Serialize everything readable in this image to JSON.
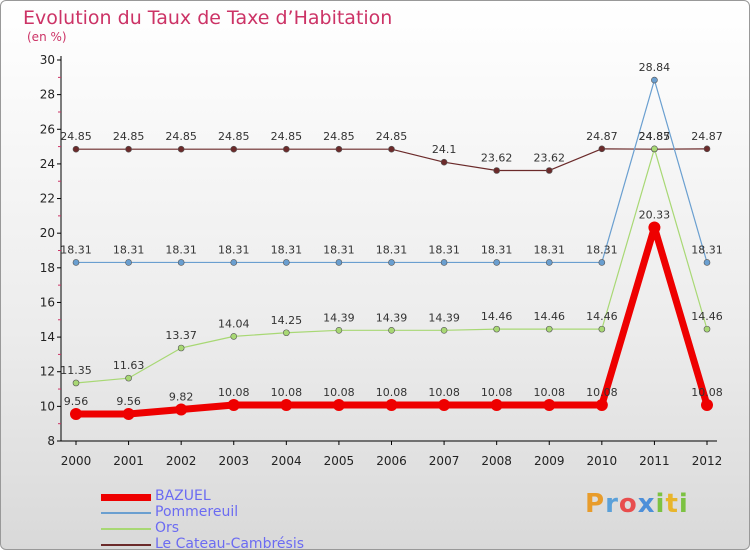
{
  "title": "Evolution du Taux de Taxe d’Habitation",
  "subtitle": "(en %)",
  "logo_text": "Proxiti",
  "chart_data": {
    "type": "line",
    "title": "Evolution du Taux de Taxe d’Habitation",
    "ylabel": "(en %)",
    "xlabel": "",
    "x": [
      "2000",
      "2001",
      "2002",
      "2003",
      "2004",
      "2005",
      "2006",
      "2007",
      "2008",
      "2009",
      "2010",
      "2011",
      "2012"
    ],
    "ylim": [
      8,
      30
    ],
    "yticks": [
      8,
      10,
      12,
      14,
      16,
      18,
      20,
      22,
      24,
      26,
      28,
      30
    ],
    "grid": false,
    "legend_position": "bottom-left",
    "series": [
      {
        "name": "BAZUEL",
        "color": "#ee0000",
        "values": [
          9.56,
          9.56,
          9.82,
          10.08,
          10.08,
          10.08,
          10.08,
          10.08,
          10.08,
          10.08,
          10.08,
          20.33,
          10.08
        ],
        "labels": [
          "9.56",
          "9.56",
          "9.82",
          "10.08",
          "10.08",
          "10.08",
          "10.08",
          "10.08",
          "10.08",
          "10.08",
          "10.08",
          "20.33",
          "10.08"
        ]
      },
      {
        "name": "Pommereuil",
        "color": "#6a9fd0",
        "values": [
          18.31,
          18.31,
          18.31,
          18.31,
          18.31,
          18.31,
          18.31,
          18.31,
          18.31,
          18.31,
          18.31,
          28.84,
          18.31
        ],
        "labels": [
          "18.31",
          "18.31",
          "18.31",
          "18.31",
          "18.31",
          "18.31",
          "18.31",
          "18.31",
          "18.31",
          "18.31",
          "18.31",
          "28.84",
          "18.31"
        ]
      },
      {
        "name": "Ors",
        "color": "#a8d874",
        "values": [
          11.35,
          11.63,
          13.37,
          14.04,
          14.25,
          14.39,
          14.39,
          14.39,
          14.46,
          14.46,
          14.46,
          24.87,
          14.46
        ],
        "labels": [
          "11.35",
          "11.63",
          "13.37",
          "14.04",
          "14.25",
          "14.39",
          "14.39",
          "14.39",
          "14.46",
          "14.46",
          "14.46",
          "24.87",
          "14.46"
        ]
      },
      {
        "name": "Le Cateau-Cambrésis",
        "color": "#6b2a2a",
        "values": [
          24.85,
          24.85,
          24.85,
          24.85,
          24.85,
          24.85,
          24.85,
          24.1,
          23.62,
          23.62,
          24.87,
          24.85,
          24.87
        ],
        "labels": [
          "24.85",
          "24.85",
          "24.85",
          "24.85",
          "24.85",
          "24.85",
          "24.85",
          "24.1",
          "23.62",
          "23.62",
          "24.87",
          "24.85",
          "24.87"
        ]
      }
    ]
  }
}
